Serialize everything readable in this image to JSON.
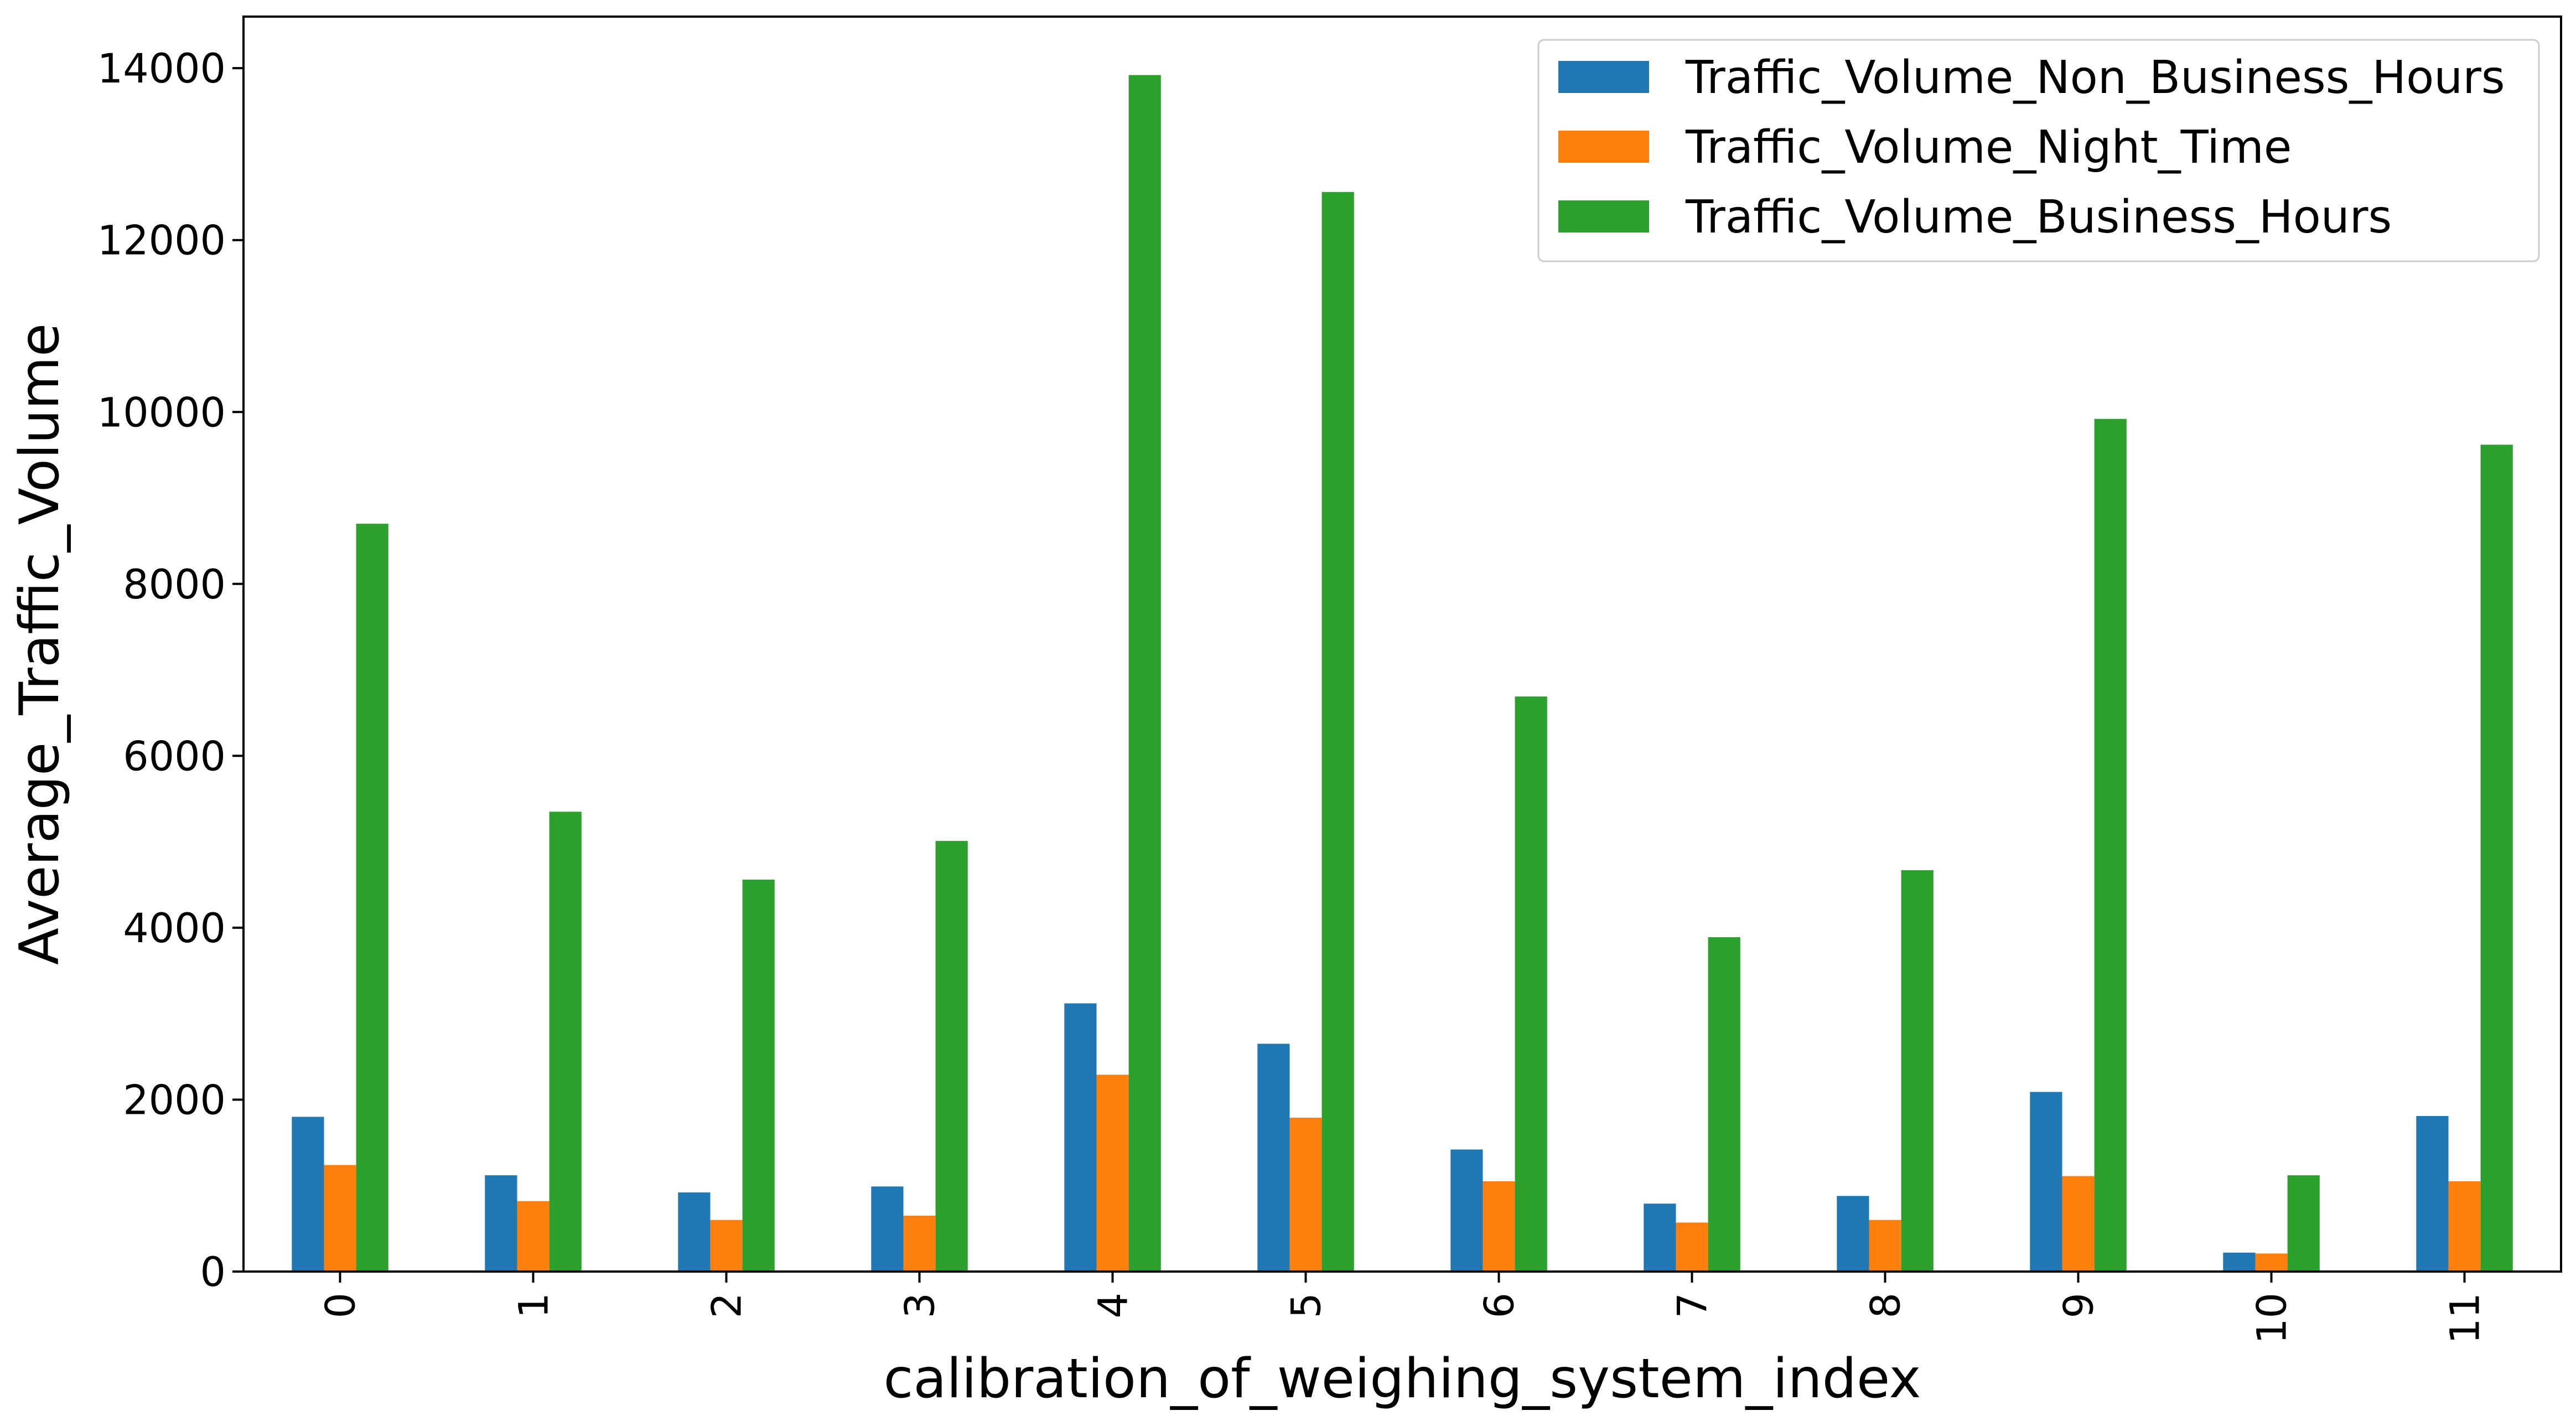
{
  "chart_data": {
    "type": "bar",
    "title": "",
    "xlabel": "calibration_of_weighing_system_index",
    "ylabel": "Average_Traffic_Volume",
    "categories": [
      "0",
      "1",
      "2",
      "3",
      "4",
      "5",
      "6",
      "7",
      "8",
      "9",
      "10",
      "11"
    ],
    "ylim": [
      0,
      14600
    ],
    "yticks": [
      "0",
      "2000",
      "4000",
      "6000",
      "8000",
      "10000",
      "12000",
      "14000"
    ],
    "grid": false,
    "legend_position": "top-right",
    "series": [
      {
        "name": "Traffic_Volume_Non_Business_Hours",
        "color": "#1f77b4",
        "values": [
          1800,
          1120,
          920,
          990,
          3120,
          2650,
          1420,
          790,
          880,
          2090,
          220,
          1810
        ]
      },
      {
        "name": "Traffic_Volume_Night_Time",
        "color": "#ff7f0e",
        "values": [
          1240,
          820,
          600,
          650,
          2290,
          1790,
          1050,
          570,
          600,
          1110,
          210,
          1050
        ]
      },
      {
        "name": "Traffic_Volume_Business_Hours",
        "color": "#2ca02c",
        "values": [
          8700,
          5350,
          4560,
          5010,
          13920,
          12560,
          6690,
          3890,
          4670,
          9920,
          1120,
          9620
        ]
      }
    ]
  }
}
